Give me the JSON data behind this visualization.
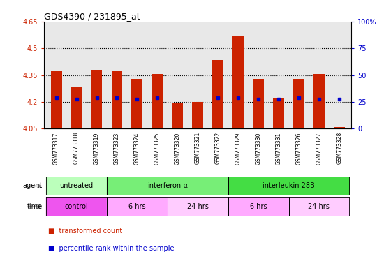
{
  "title": "GDS4390 / 231895_at",
  "samples": [
    "GSM773317",
    "GSM773318",
    "GSM773319",
    "GSM773323",
    "GSM773324",
    "GSM773325",
    "GSM773320",
    "GSM773321",
    "GSM773322",
    "GSM773329",
    "GSM773330",
    "GSM773331",
    "GSM773326",
    "GSM773327",
    "GSM773328"
  ],
  "red_values": [
    4.37,
    4.28,
    4.38,
    4.37,
    4.33,
    4.355,
    4.19,
    4.2,
    4.435,
    4.57,
    4.33,
    4.225,
    4.33,
    4.355,
    4.06
  ],
  "blue_values": [
    4.225,
    4.215,
    4.225,
    4.225,
    4.215,
    4.225,
    null,
    null,
    4.225,
    4.225,
    4.215,
    4.215,
    4.225,
    4.215,
    4.215
  ],
  "ymin": 4.05,
  "ymax": 4.65,
  "yticks": [
    4.05,
    4.2,
    4.35,
    4.5,
    4.65
  ],
  "dotted_lines": [
    4.2,
    4.35,
    4.5
  ],
  "right_yticks": [
    0,
    25,
    50,
    75,
    100
  ],
  "right_yticklabels": [
    "0",
    "25",
    "50",
    "75",
    "100%"
  ],
  "agent_groups": [
    {
      "label": "untreated",
      "start": 0,
      "end": 3,
      "color": "#bbffbb"
    },
    {
      "label": "interferon-α",
      "start": 3,
      "end": 9,
      "color": "#77ee77"
    },
    {
      "label": "interleukin 28B",
      "start": 9,
      "end": 15,
      "color": "#44dd44"
    }
  ],
  "time_groups": [
    {
      "label": "control",
      "start": 0,
      "end": 3,
      "color": "#ee55ee"
    },
    {
      "label": "6 hrs",
      "start": 3,
      "end": 6,
      "color": "#ffaaff"
    },
    {
      "label": "24 hrs",
      "start": 6,
      "end": 9,
      "color": "#ffccff"
    },
    {
      "label": "6 hrs",
      "start": 9,
      "end": 12,
      "color": "#ffaaff"
    },
    {
      "label": "24 hrs",
      "start": 12,
      "end": 15,
      "color": "#ffccff"
    }
  ],
  "bar_color": "#cc2200",
  "dot_color": "#0000cc",
  "bar_width": 0.55,
  "plot_bg_color": "#e8e8e8",
  "tick_label_color": "#cc2200",
  "right_tick_color": "#0000cc"
}
